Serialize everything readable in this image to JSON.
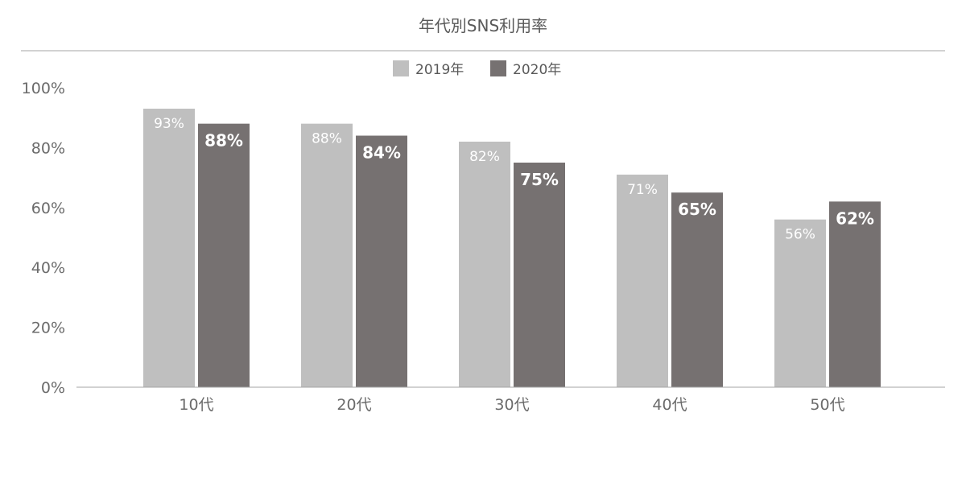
{
  "chart_data": {
    "type": "bar",
    "title": "年代別SNS利用率",
    "categories": [
      "10代",
      "20代",
      "30代",
      "40代",
      "50代"
    ],
    "series": [
      {
        "name": "2019年",
        "values": [
          93,
          88,
          82,
          71,
          56
        ],
        "color": "#bfbfbf",
        "label_color": "#ffffff"
      },
      {
        "name": "2020年",
        "values": [
          88,
          84,
          75,
          65,
          62
        ],
        "color": "#767171",
        "label_color": "#ffffff"
      }
    ],
    "value_labels": {
      "2019年": [
        "93%",
        "88%",
        "82%",
        "71%",
        "56%"
      ],
      "2020年": [
        "88%",
        "84%",
        "75%",
        "65%",
        "62%"
      ]
    },
    "yticks": [
      "0%",
      "20%",
      "40%",
      "60%",
      "80%",
      "100%"
    ],
    "ylim": [
      0,
      100
    ],
    "xlabel": "",
    "ylabel": "",
    "grid": false,
    "legend_position": "top-center"
  }
}
